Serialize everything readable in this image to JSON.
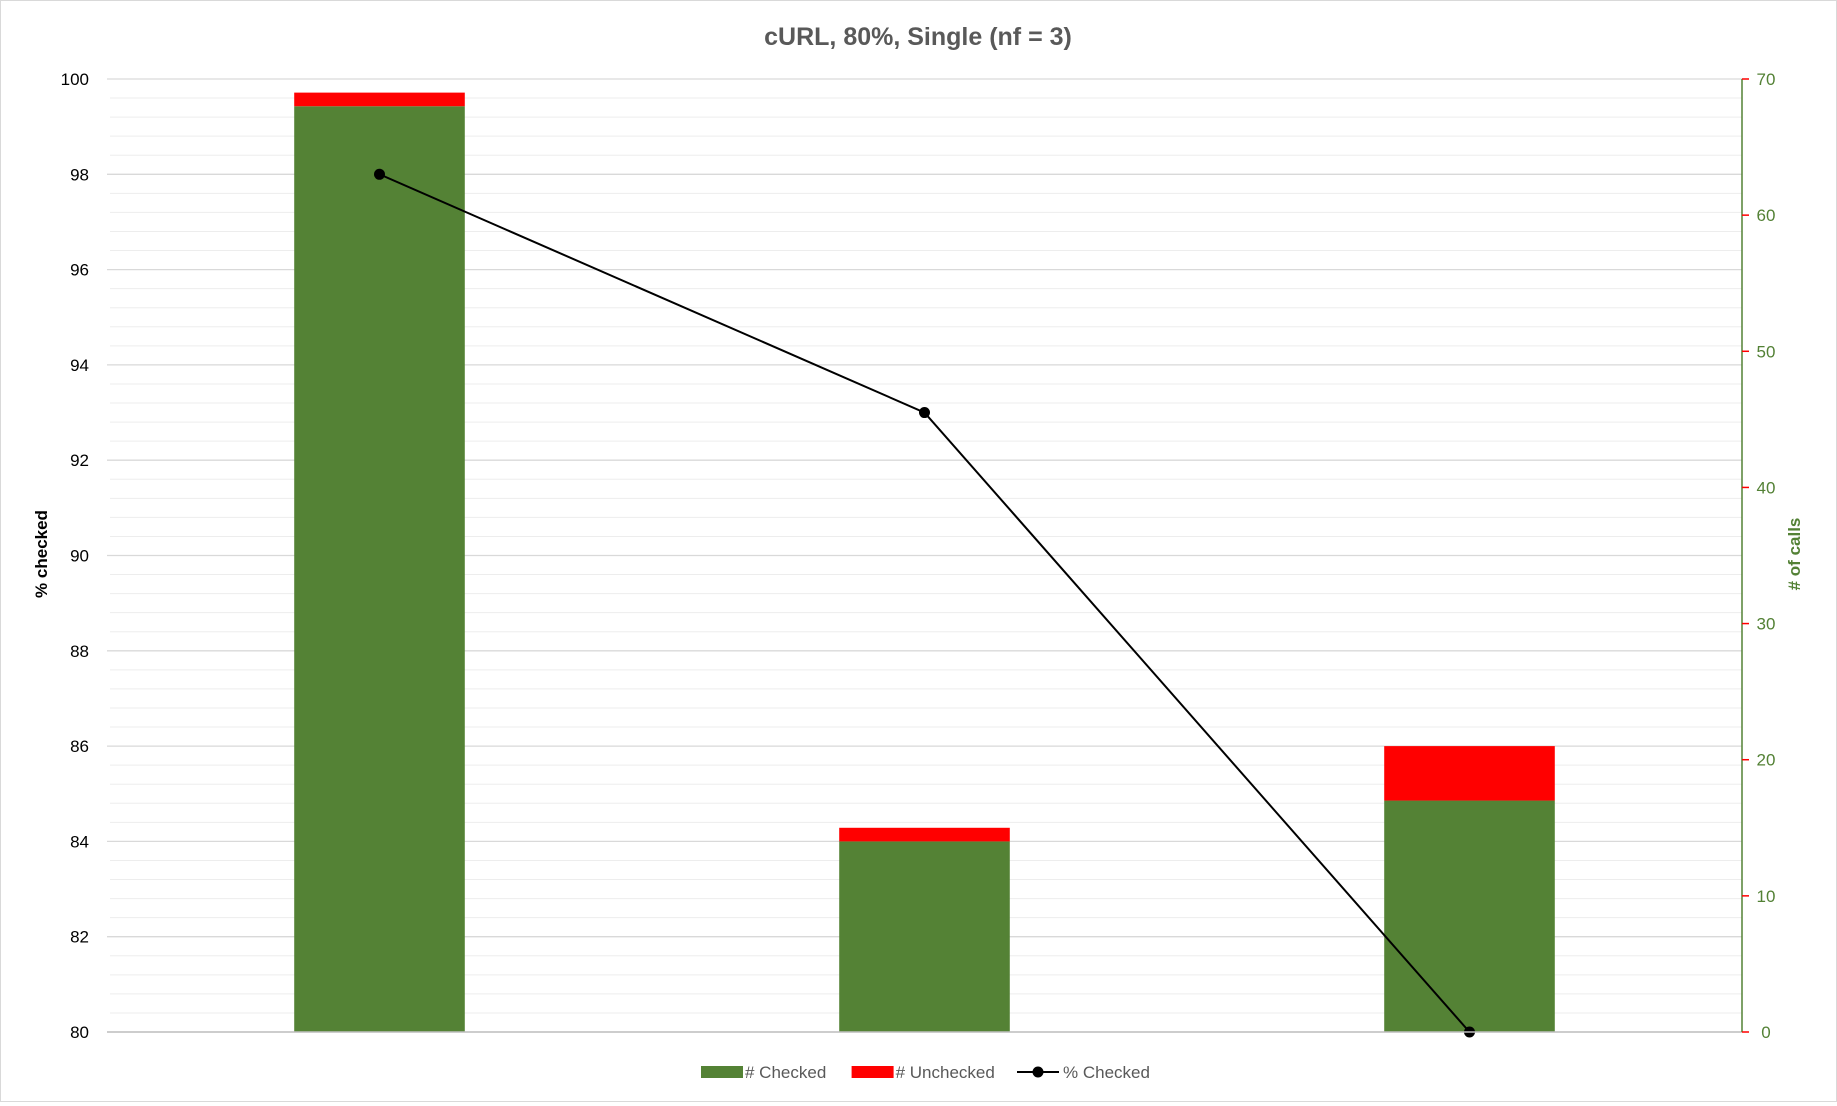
{
  "chart_data": {
    "type": "bar",
    "title": "cURL, 80%, Single (nf = 3)",
    "categories": [
      "",
      "",
      ""
    ],
    "series": [
      {
        "name": "# Checked",
        "kind": "stacked-bar",
        "axis": "right",
        "color": "#548235",
        "values": [
          68,
          14,
          17
        ]
      },
      {
        "name": "# Unchecked",
        "kind": "stacked-bar",
        "axis": "right",
        "color": "#ff0000",
        "values": [
          1,
          1,
          4
        ]
      },
      {
        "name": "% Checked",
        "kind": "line",
        "axis": "left",
        "color": "#000000",
        "values": [
          98,
          93,
          80
        ]
      }
    ],
    "ylabel": "% checked",
    "ylim": [
      80,
      100
    ],
    "yticks": [
      "80",
      "82",
      "84",
      "86",
      "88",
      "90",
      "92",
      "94",
      "96",
      "98",
      "100"
    ],
    "y2label": "# of calls",
    "y2lim": [
      0,
      70
    ],
    "y2ticks": [
      "0",
      "10",
      "20",
      "30",
      "40",
      "50",
      "60",
      "70"
    ],
    "grid": true,
    "legend": "bottom"
  }
}
